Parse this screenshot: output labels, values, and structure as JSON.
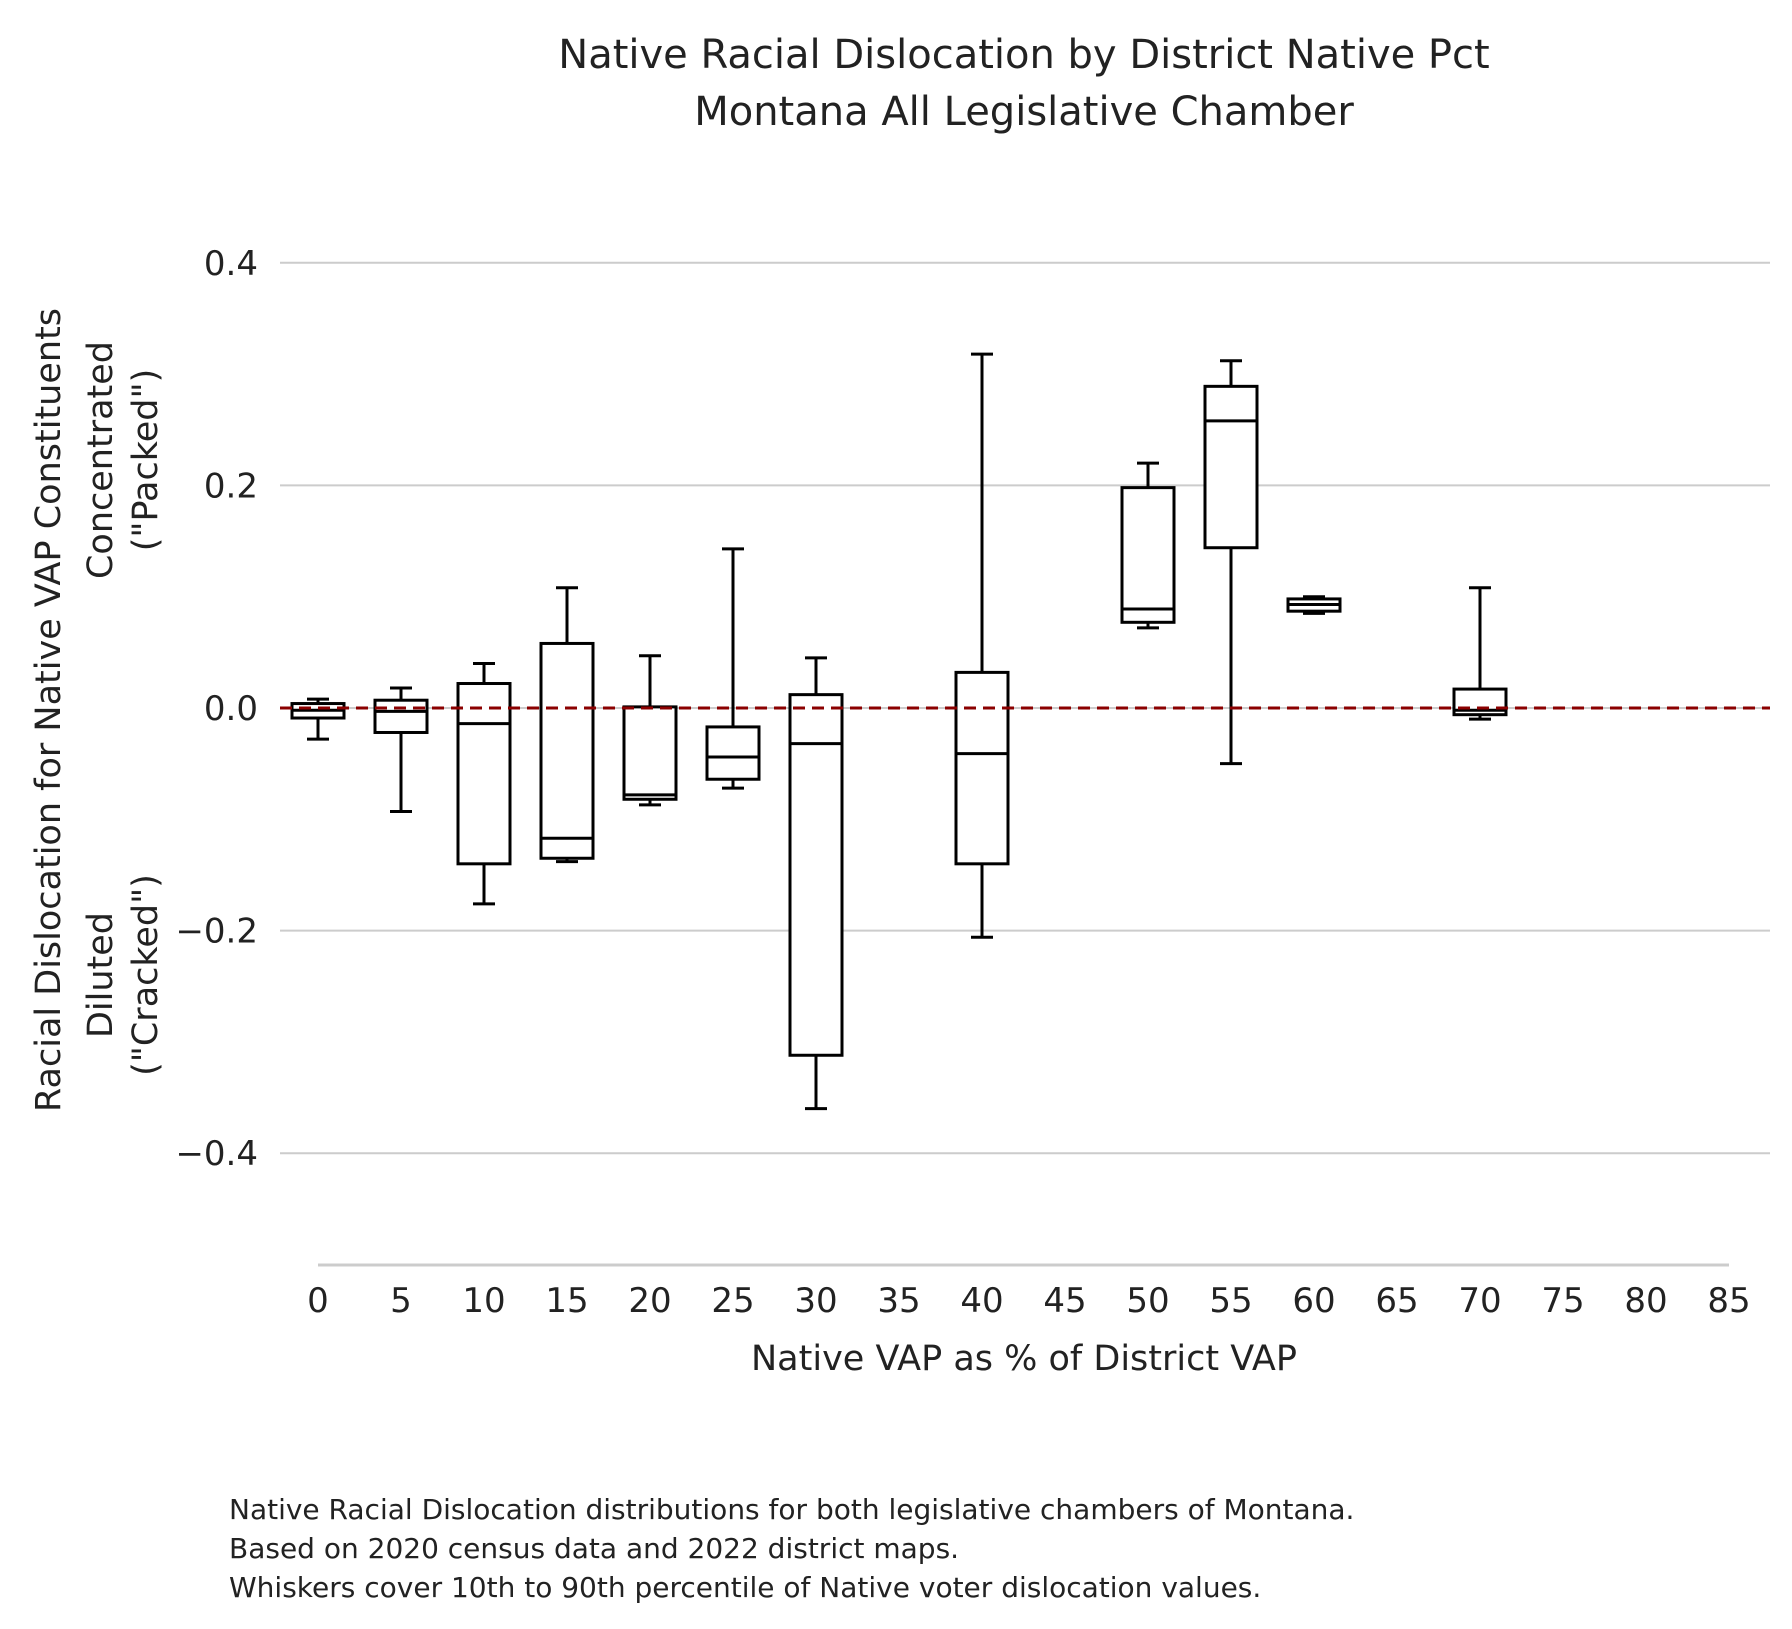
{
  "chart_data": {
    "type": "box",
    "title": [
      "Native Racial Dislocation by District Native Pct",
      "Montana All Legislative Chamber"
    ],
    "xlabel": "Native VAP as % of District VAP",
    "ylabel": [
      "Racial Dislocation for Native VAP Constituents"
    ],
    "ylabel_top": [
      "Concentrated",
      "(\"Packed\")"
    ],
    "ylabel_bottom": [
      "Diluted",
      "(\"Cracked\")"
    ],
    "x_ticks": [
      "0",
      "5",
      "10",
      "15",
      "20",
      "25",
      "30",
      "35",
      "40",
      "45",
      "50",
      "55",
      "60",
      "65",
      "70",
      "75",
      "80",
      "85"
    ],
    "x_tick_values": [
      0,
      5,
      10,
      15,
      20,
      25,
      30,
      35,
      40,
      45,
      50,
      55,
      60,
      65,
      70,
      75,
      80,
      85
    ],
    "y_ticks": [
      "0.4",
      "0.2",
      "0.0",
      "−0.2",
      "−0.4"
    ],
    "y_tick_values": [
      0.4,
      0.2,
      0.0,
      -0.2,
      -0.4
    ],
    "xlim": [
      0,
      85
    ],
    "ylim": [
      -0.5,
      0.4
    ],
    "grid": "horizontal",
    "reference_line": {
      "y": 0.0,
      "style": "dashed",
      "color": "#8b0000"
    },
    "boxes": [
      {
        "x": 0,
        "whisker_low": -0.028,
        "q1": -0.009,
        "median": -0.002,
        "q3": 0.004,
        "whisker_high": 0.008
      },
      {
        "x": 5,
        "whisker_low": -0.093,
        "q1": -0.022,
        "median": -0.003,
        "q3": 0.007,
        "whisker_high": 0.018
      },
      {
        "x": 10,
        "whisker_low": -0.176,
        "q1": -0.14,
        "median": -0.014,
        "q3": 0.022,
        "whisker_high": 0.04
      },
      {
        "x": 15,
        "whisker_low": -0.138,
        "q1": -0.135,
        "median": -0.117,
        "q3": 0.058,
        "whisker_high": 0.108
      },
      {
        "x": 20,
        "whisker_low": -0.087,
        "q1": -0.082,
        "median": -0.078,
        "q3": 0.001,
        "whisker_high": 0.047
      },
      {
        "x": 25,
        "whisker_low": -0.072,
        "q1": -0.064,
        "median": -0.044,
        "q3": -0.017,
        "whisker_high": 0.143
      },
      {
        "x": 30,
        "whisker_low": -0.36,
        "q1": -0.312,
        "median": -0.032,
        "q3": 0.012,
        "whisker_high": 0.045
      },
      {
        "x": 40,
        "whisker_low": -0.206,
        "q1": -0.14,
        "median": -0.041,
        "q3": 0.032,
        "whisker_high": 0.318
      },
      {
        "x": 50,
        "whisker_low": 0.072,
        "q1": 0.077,
        "median": 0.089,
        "q3": 0.198,
        "whisker_high": 0.22
      },
      {
        "x": 55,
        "whisker_low": -0.05,
        "q1": 0.144,
        "median": 0.258,
        "q3": 0.289,
        "whisker_high": 0.312
      },
      {
        "x": 60,
        "whisker_low": 0.085,
        "q1": 0.087,
        "median": 0.093,
        "q3": 0.098,
        "whisker_high": 0.1
      },
      {
        "x": 70,
        "whisker_low": -0.01,
        "q1": -0.006,
        "median": -0.002,
        "q3": 0.017,
        "whisker_high": 0.108
      }
    ],
    "colors": {
      "box": "#000000",
      "grid": "#cccccc",
      "reference": "#8b0000"
    }
  },
  "caption": [
    "Native Racial Dislocation distributions for both legislative chambers of Montana.",
    "Based on 2020 census data and 2022 district maps.",
    "Whiskers cover 10th to 90th percentile of Native voter dislocation values."
  ]
}
